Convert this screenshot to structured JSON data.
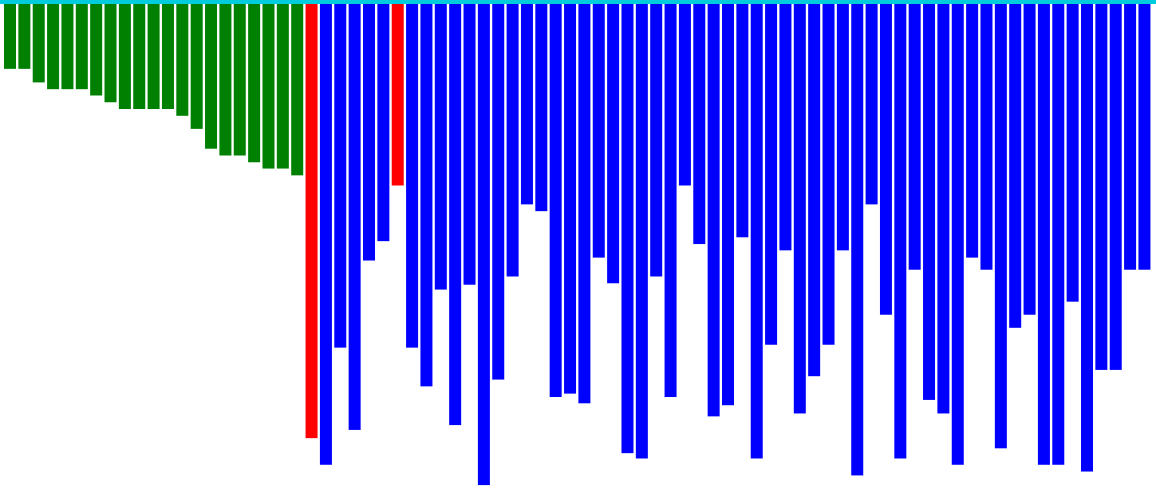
{
  "chart_data": {
    "type": "bar",
    "orientation": "vertical-down",
    "title": "",
    "xlabel": "",
    "ylabel": "",
    "ylim": [
      0,
      100
    ],
    "grid": false,
    "legend": "none",
    "colors": {
      "baseline": "#00ccdd",
      "green": "#008000",
      "red": "#ff0000",
      "blue": "#0000ff"
    },
    "values": [
      13.4,
      13.4,
      16.2,
      17.6,
      17.6,
      17.6,
      18.9,
      20.3,
      21.7,
      21.7,
      21.7,
      21.7,
      23.1,
      25.8,
      29.9,
      31.3,
      31.3,
      32.7,
      34.0,
      34.0,
      35.4,
      89.7,
      95.2,
      71.0,
      88.0,
      53.0,
      49.0,
      37.5,
      71.0,
      79.0,
      59.0,
      87.0,
      58.0,
      99.4,
      77.6,
      56.3,
      41.4,
      42.8,
      81.2,
      80.5,
      82.5,
      52.4,
      57.7,
      92.8,
      93.9,
      56.3,
      81.2,
      37.5,
      49.6,
      85.2,
      82.9,
      48.2,
      93.9,
      70.4,
      50.9,
      84.6,
      76.9,
      70.4,
      50.9,
      97.4,
      41.4,
      64.2,
      93.9,
      54.9,
      81.8,
      84.6,
      95.2,
      52.4,
      54.9,
      91.8,
      66.9,
      64.2,
      95.2,
      95.2,
      61.5,
      96.6,
      75.6,
      75.6,
      54.9,
      54.9
    ],
    "series_colors": [
      "green",
      "green",
      "green",
      "green",
      "green",
      "green",
      "green",
      "green",
      "green",
      "green",
      "green",
      "green",
      "green",
      "green",
      "green",
      "green",
      "green",
      "green",
      "green",
      "green",
      "green",
      "red",
      "blue",
      "blue",
      "blue",
      "blue",
      "blue",
      "red",
      "blue",
      "blue",
      "blue",
      "blue",
      "blue",
      "blue",
      "blue",
      "blue",
      "blue",
      "blue",
      "blue",
      "blue",
      "blue",
      "blue",
      "blue",
      "blue",
      "blue",
      "blue",
      "blue",
      "blue",
      "blue",
      "blue",
      "blue",
      "blue",
      "blue",
      "blue",
      "blue",
      "blue",
      "blue",
      "blue",
      "blue",
      "blue",
      "blue",
      "blue",
      "blue",
      "blue",
      "blue",
      "blue",
      "blue",
      "blue",
      "blue",
      "blue",
      "blue",
      "blue",
      "blue",
      "blue",
      "blue",
      "blue",
      "blue",
      "blue",
      "blue",
      "blue"
    ]
  }
}
